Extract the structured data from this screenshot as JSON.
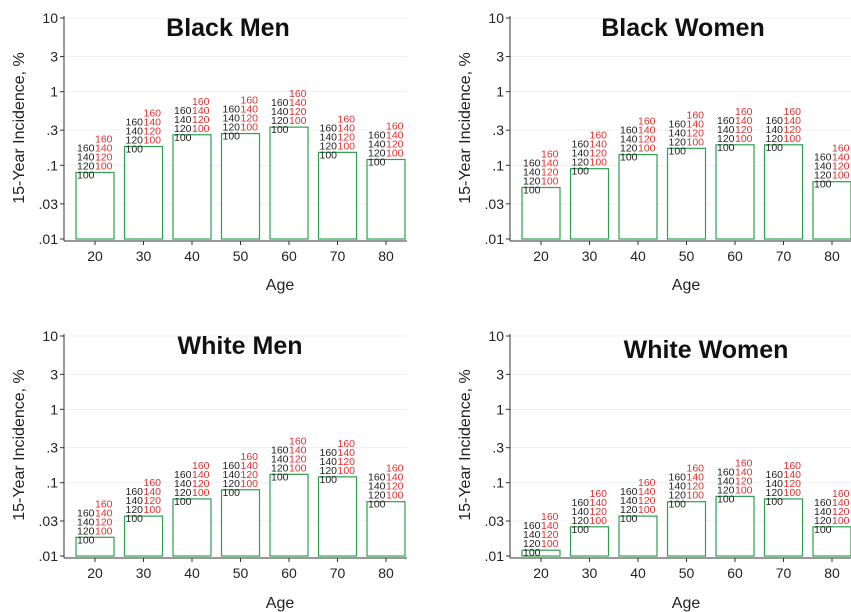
{
  "chart_data": [
    {
      "type": "bar",
      "title": "Black Men",
      "xlabel": "Age",
      "ylabel": "15-Year Incidence, %",
      "yscale": "log",
      "ylim": [
        0.01,
        10
      ],
      "yticks": [
        "10",
        "3",
        "1",
        ".3",
        ".1",
        ".03",
        ".01"
      ],
      "categories": [
        "20",
        "30",
        "40",
        "50",
        "60",
        "70",
        "80"
      ],
      "values": [
        0.08,
        0.18,
        0.26,
        0.27,
        0.33,
        0.15,
        0.12
      ],
      "bar_color": "#2e9e4f",
      "stacked_labels": {
        "black": [
          "160",
          "140",
          "120",
          "100"
        ],
        "red": [
          "160",
          "140",
          "120",
          "100"
        ]
      }
    },
    {
      "type": "bar",
      "title": "Black Women",
      "xlabel": "Age",
      "ylabel": "15-Year Incidence, %",
      "yscale": "log",
      "ylim": [
        0.01,
        10
      ],
      "yticks": [
        "10",
        "3",
        "1",
        ".3",
        ".1",
        ".03",
        ".01"
      ],
      "categories": [
        "20",
        "30",
        "40",
        "50",
        "60",
        "70",
        "80"
      ],
      "values": [
        0.05,
        0.09,
        0.14,
        0.17,
        0.19,
        0.19,
        0.06
      ],
      "bar_color": "#2e9e4f",
      "stacked_labels": {
        "black": [
          "160",
          "140",
          "120",
          "100"
        ],
        "red": [
          "160",
          "140",
          "120",
          "100"
        ]
      }
    },
    {
      "type": "bar",
      "title": "White Men",
      "xlabel": "Age",
      "ylabel": "15-Year Incidence, %",
      "yscale": "log",
      "ylim": [
        0.01,
        10
      ],
      "yticks": [
        "10",
        "3",
        "1",
        ".3",
        ".1",
        ".03",
        ".01"
      ],
      "categories": [
        "20",
        "30",
        "40",
        "50",
        "60",
        "70",
        "80"
      ],
      "values": [
        0.018,
        0.035,
        0.06,
        0.08,
        0.13,
        0.12,
        0.055
      ],
      "bar_color": "#2e9e4f",
      "stacked_labels": {
        "black": [
          "160",
          "140",
          "120",
          "100"
        ],
        "red": [
          "160",
          "140",
          "120",
          "100"
        ]
      }
    },
    {
      "type": "bar",
      "title": "White Women",
      "xlabel": "Age",
      "ylabel": "15-Year Incidence, %",
      "yscale": "log",
      "ylim": [
        0.01,
        10
      ],
      "yticks": [
        "10",
        "3",
        "1",
        ".3",
        ".1",
        ".03",
        ".01"
      ],
      "categories": [
        "20",
        "30",
        "40",
        "50",
        "60",
        "70",
        "80"
      ],
      "values": [
        0.012,
        0.025,
        0.035,
        0.055,
        0.065,
        0.06,
        0.025
      ],
      "bar_color": "#2e9e4f",
      "stacked_labels": {
        "black": [
          "160",
          "140",
          "120",
          "100"
        ],
        "red": [
          "160",
          "140",
          "120",
          "100"
        ]
      }
    }
  ]
}
